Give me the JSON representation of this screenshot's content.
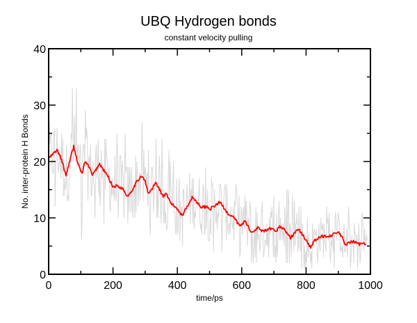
{
  "chart_data": {
    "type": "line",
    "title": "UBQ Hydrogen bonds",
    "subtitle": "constant velocity pulling",
    "xlabel": "time/ps",
    "ylabel": "No. inter-protein H Bonds",
    "xlim": [
      0,
      1000
    ],
    "ylim": [
      0,
      40
    ],
    "xticks": [
      0,
      200,
      400,
      600,
      800,
      1000
    ],
    "yticks": [
      0,
      10,
      20,
      30,
      40
    ],
    "x_minor_step": 100,
    "y_minor_step": 5,
    "grid": false,
    "legend": null,
    "series": [
      {
        "name": "raw",
        "color": "#d8d8d8",
        "description": "instantaneous H-bond count (noisy, roughly ±6 around smoothed, spikes to ~38)",
        "envelope": {
          "x": [
            0,
            50,
            100,
            150,
            200,
            250,
            300,
            350,
            400,
            450,
            500,
            550,
            600,
            650,
            700,
            750,
            800,
            850,
            900,
            950,
            1000
          ],
          "max": [
            38,
            36,
            34,
            30,
            28,
            26,
            27,
            25,
            22,
            22,
            21,
            20,
            18,
            17,
            16,
            15,
            14,
            13,
            13,
            12,
            11
          ],
          "min": [
            10,
            8,
            6,
            9,
            8,
            7,
            8,
            6,
            5,
            5,
            4,
            3,
            2,
            1,
            2,
            0,
            0,
            0,
            1,
            0,
            0
          ]
        }
      },
      {
        "name": "running average",
        "color": "#ff0000",
        "x": [
          0,
          11,
          26,
          39,
          54,
          65,
          78,
          91,
          104,
          112,
          125,
          136,
          158,
          170,
          184,
          200,
          212,
          230,
          245,
          260,
          275,
          288,
          300,
          309,
          320,
          333,
          345,
          356,
          365,
          380,
          400,
          415,
          430,
          447,
          460,
          475,
          490,
          503,
          520,
          533,
          545,
          562,
          577,
          594,
          611,
          622,
          633,
          648,
          665,
          680,
          691,
          705,
          719,
          735,
          752,
          765,
          778,
          795,
          814,
          827,
          849,
          865,
          879,
          901,
          912,
          922,
          935,
          950,
          965,
          975,
          987
        ],
        "values": [
          20.5,
          21.2,
          22,
          20.5,
          17.5,
          20,
          22.7,
          19.6,
          17.8,
          19.9,
          19.2,
          17.5,
          19.6,
          18.5,
          17.4,
          15.5,
          15.7,
          15.2,
          13.8,
          15,
          16.5,
          17.5,
          16.5,
          14.3,
          15,
          16.3,
          15,
          13.8,
          14.2,
          12.6,
          11.6,
          10.4,
          12,
          13.7,
          12.8,
          11.9,
          12,
          11.6,
          12.3,
          12.8,
          11.8,
          10.4,
          10,
          8.5,
          9.5,
          8.2,
          7.3,
          8.3,
          7.6,
          7.8,
          8.1,
          7.6,
          8.5,
          7.8,
          6.4,
          7.5,
          7.9,
          6.5,
          4.8,
          6.0,
          6.7,
          6.8,
          6.9,
          7.5,
          6.5,
          5.2,
          5.6,
          5.8,
          5.3,
          5.6,
          5.4
        ]
      }
    ]
  }
}
